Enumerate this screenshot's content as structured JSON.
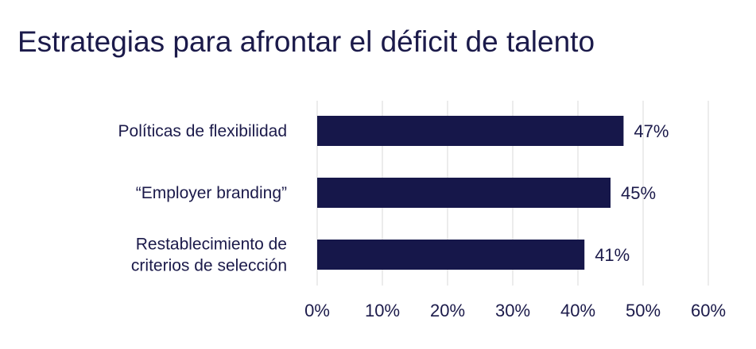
{
  "chart_data": {
    "type": "bar",
    "orientation": "horizontal",
    "title": "Estrategias para afrontar el déficit de talento",
    "categories": [
      [
        "Políticas de flexibilidad"
      ],
      [
        "“Employer branding”"
      ],
      [
        "Restablecimiento de",
        "criterios de selección"
      ]
    ],
    "values": [
      47,
      45,
      41
    ],
    "value_labels": [
      "47%",
      "45%",
      "41%"
    ],
    "xlim": [
      0,
      60
    ],
    "x_ticks": [
      0,
      10,
      20,
      30,
      40,
      50,
      60
    ],
    "x_tick_labels": [
      "0%",
      "10%",
      "20%",
      "30%",
      "40%",
      "50%",
      "60%"
    ],
    "grid": "vertical",
    "legend": "none",
    "colors": {
      "bar": "#16174a",
      "text": "#1b1a4a",
      "grid": "#d9d9d9"
    }
  }
}
